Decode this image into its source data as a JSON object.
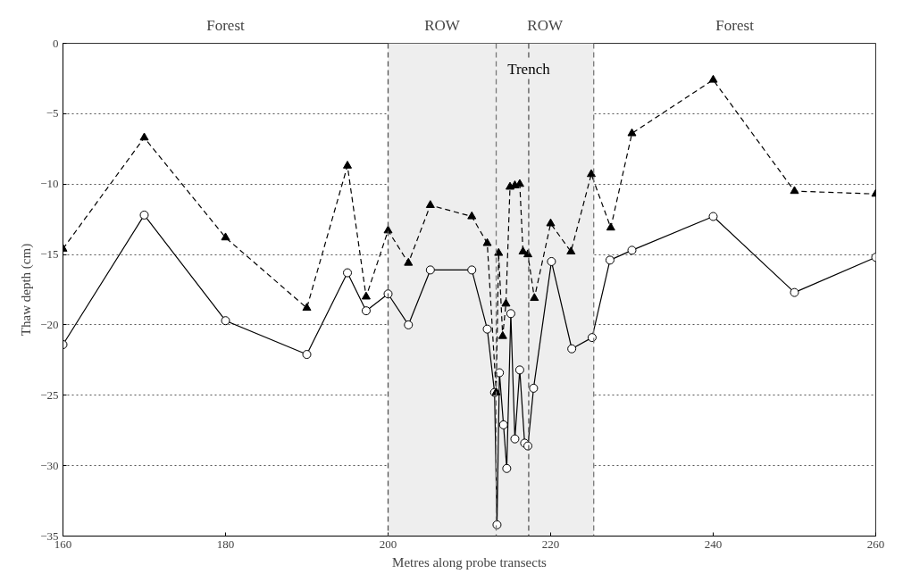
{
  "chart_data": {
    "type": "line",
    "xlabel": "Metres along probe transects",
    "ylabel": "Thaw depth (cm)",
    "xlim": [
      160,
      260
    ],
    "xticks": [
      160,
      180,
      200,
      220,
      240,
      260
    ],
    "ylim": [
      -35,
      0
    ],
    "yticks": [
      -35,
      -30,
      -25,
      -20,
      -15,
      -10,
      -5,
      0
    ],
    "grid": "y",
    "series": [
      {
        "color": "#000000",
        "marker": "triangle",
        "line_style": "dashed",
        "x": [
          160,
          170,
          180,
          190,
          195,
          197.3,
          200,
          202.5,
          205.2,
          210.3,
          212.2,
          213.3,
          213.6,
          214.1,
          214.5,
          215.0,
          215.6,
          216.2,
          216.6,
          217.2,
          218.0,
          220.0,
          222.5,
          225.0,
          227.4,
          230,
          240,
          250,
          260
        ],
        "values": [
          -14.6,
          -6.7,
          -13.8,
          -18.8,
          -8.7,
          -18.0,
          -13.3,
          -15.6,
          -11.5,
          -12.3,
          -14.2,
          -24.8,
          -14.9,
          -20.8,
          -18.5,
          -10.2,
          -10.1,
          -10.0,
          -14.8,
          -15.0,
          -18.1,
          -12.8,
          -14.8,
          -9.3,
          -13.1,
          -6.4,
          -2.6,
          -10.5,
          -10.7
        ]
      },
      {
        "color": "#000000",
        "marker": "circle",
        "line_style": "solid",
        "x": [
          160,
          170,
          180,
          190,
          195,
          197.3,
          200,
          202.5,
          205.2,
          210.3,
          212.2,
          213.1,
          213.4,
          213.7,
          214.2,
          214.6,
          215.1,
          215.6,
          216.2,
          216.8,
          217.2,
          217.9,
          220.1,
          222.6,
          225.1,
          227.3,
          230,
          240,
          250,
          260
        ],
        "values": [
          -21.4,
          -12.2,
          -19.7,
          -22.1,
          -16.3,
          -19.0,
          -17.8,
          -20.0,
          -16.1,
          -16.1,
          -20.3,
          -24.8,
          -34.2,
          -23.4,
          -27.1,
          -30.2,
          -19.2,
          -28.1,
          -23.2,
          -28.4,
          -28.6,
          -24.5,
          -15.5,
          -21.7,
          -20.9,
          -15.4,
          -14.7,
          -12.3,
          -17.7,
          -15.2
        ]
      }
    ],
    "bands": [
      {
        "axis": "x",
        "from": 200,
        "to": 213.3,
        "label": "ROW",
        "color": "#eeeeee"
      },
      {
        "axis": "x",
        "from": 213.3,
        "to": 225.3,
        "label": "ROW",
        "color": "#eeeeee"
      }
    ],
    "annotations": [
      "Forest",
      "Forest"
    ],
    "ref_lines": [
      {
        "axis": "x",
        "value": 200,
        "color": "#555555",
        "line_style": "dashed"
      },
      {
        "axis": "x",
        "value": 213.3,
        "color": "#777777",
        "line_style": "dashed"
      },
      {
        "axis": "x",
        "value": 217.3,
        "label": "Trench",
        "color": "#555555",
        "line_style": "dashed"
      },
      {
        "axis": "x",
        "value": 225.3,
        "color": "#777777",
        "line_style": "dashed"
      }
    ]
  }
}
